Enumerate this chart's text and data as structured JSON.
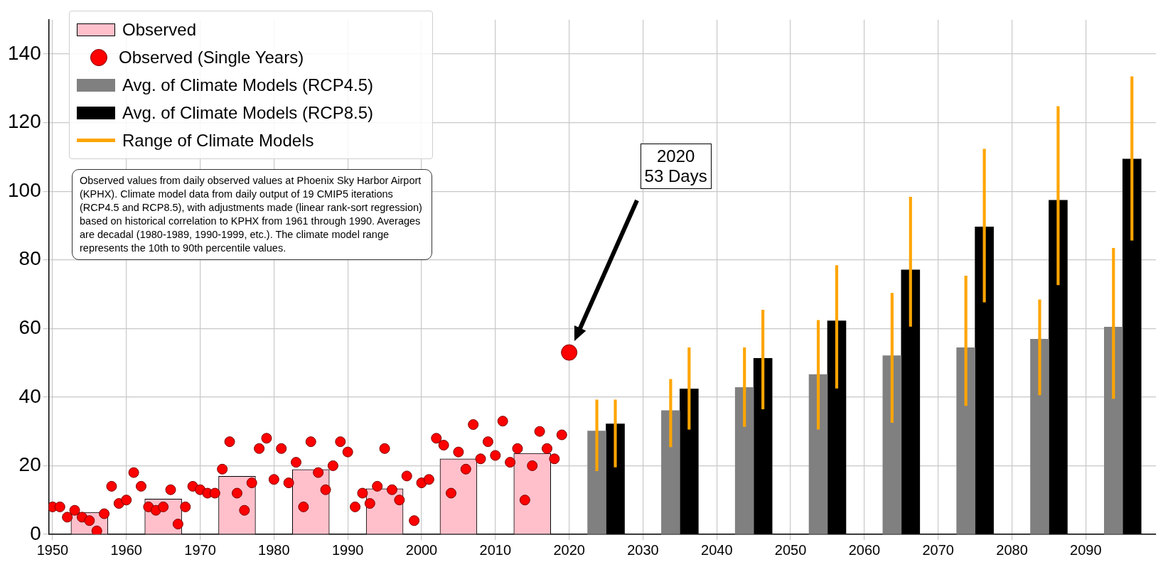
{
  "chart_data": {
    "type": "bar",
    "xlim": [
      1949.5,
      2099.5
    ],
    "xticks": [
      1950,
      1960,
      1970,
      1980,
      1990,
      2000,
      2010,
      2020,
      2030,
      2040,
      2050,
      2060,
      2070,
      2080,
      2090
    ],
    "ylim": [
      0,
      150
    ],
    "yticks": [
      0,
      20,
      40,
      60,
      80,
      100,
      120,
      140
    ],
    "grid": true,
    "legend": "top left",
    "series": [
      {
        "name": "Observed",
        "color": "#ffc0cb",
        "x": [
          1955,
          1965,
          1975,
          1985,
          1995,
          2005,
          2015
        ],
        "values": [
          6.4,
          10.3,
          16.9,
          18.9,
          13.3,
          22.0,
          23.6
        ]
      },
      {
        "name": "Observed (Single Years)",
        "type": "scatter",
        "color": "#ff0000",
        "marker": "circle",
        "x": [
          1950,
          1951,
          1952,
          1953,
          1954,
          1955,
          1956,
          1957,
          1958,
          1959,
          1960,
          1961,
          1962,
          1963,
          1964,
          1965,
          1966,
          1967,
          1968,
          1969,
          1970,
          1971,
          1972,
          1973,
          1974,
          1975,
          1976,
          1977,
          1978,
          1979,
          1980,
          1981,
          1982,
          1983,
          1984,
          1985,
          1986,
          1987,
          1988,
          1989,
          1990,
          1991,
          1992,
          1993,
          1994,
          1995,
          1996,
          1997,
          1998,
          1999,
          2000,
          2001,
          2002,
          2003,
          2004,
          2005,
          2006,
          2007,
          2008,
          2009,
          2010,
          2011,
          2012,
          2013,
          2014,
          2015,
          2016,
          2017,
          2018,
          2019
        ],
        "values": [
          8,
          8,
          5,
          7,
          5,
          4,
          1,
          6,
          14,
          9,
          10,
          18,
          14,
          8,
          7,
          8,
          13,
          3,
          8,
          14,
          13,
          12,
          12,
          19,
          27,
          12,
          7,
          15,
          25,
          28,
          16,
          25,
          15,
          21,
          8,
          27,
          18,
          13,
          20,
          27,
          24,
          8,
          12,
          9,
          14,
          25,
          13,
          10,
          17,
          4,
          15,
          16,
          28,
          26,
          12,
          24,
          19,
          32,
          22,
          27,
          23,
          33,
          21,
          25,
          10,
          20,
          30,
          25,
          22,
          29
        ]
      },
      {
        "type": "scatter",
        "color": "#ff0000",
        "marker": "circle",
        "x": [
          2020
        ],
        "values": [
          53
        ]
      },
      {
        "name": "Avg. of Climate Models (RCP4.5)",
        "color": "#808080",
        "x": [
          2023.75,
          2033.75,
          2043.75,
          2053.75,
          2063.75,
          2073.75,
          2083.75,
          2093.75
        ],
        "values": [
          30.1,
          36.1,
          42.8,
          46.6,
          52.1,
          54.4,
          56.9,
          60.4
        ]
      },
      {
        "name": "Avg. of Climate Models (RCP8.5)",
        "color": "#000000",
        "x": [
          2026.25,
          2036.25,
          2046.25,
          2056.25,
          2066.25,
          2076.25,
          2086.25,
          2096.25
        ],
        "values": [
          32.2,
          42.4,
          51.3,
          62.2,
          77.1,
          89.6,
          97.4,
          109.4
        ]
      },
      {
        "name": "Range of Climate Models",
        "color": "#ffa500",
        "x": [
          2023.75,
          2026.25,
          2033.75,
          2036.25,
          2043.75,
          2046.25,
          2053.75,
          2056.25,
          2063.75,
          2066.25,
          2073.75,
          2076.25,
          2083.75,
          2086.25,
          2093.75,
          2096.25
        ],
        "base": [
          18.5,
          19.6,
          25.5,
          30.6,
          31.4,
          36.5,
          30.6,
          42.6,
          32.6,
          60.6,
          37.5,
          67.7,
          40.6,
          72.7,
          39.6,
          85.7
        ],
        "values": [
          20.7,
          19.6,
          19.7,
          23.8,
          23.0,
          28.9,
          31.8,
          35.8,
          37.7,
          37.7,
          37.8,
          44.6,
          27.8,
          52.0,
          43.8,
          47.7
        ]
      }
    ],
    "annotations": [
      "Observed values from daily observed values at Phoenix Sky Harbor Airport (KPHX). Climate model data from daily output of 19 CMIP5 iterations (RCP4.5 and RCP8.5), with adjustments made (linear rank-sort regression) based on historical correlation to KPHX from 1961 through 1990. Averages are decadal (1980-1989, 1990-1999, etc.). The climate model range represents the 10th to 90th percentile values.",
      "2020\n53 Days"
    ]
  }
}
